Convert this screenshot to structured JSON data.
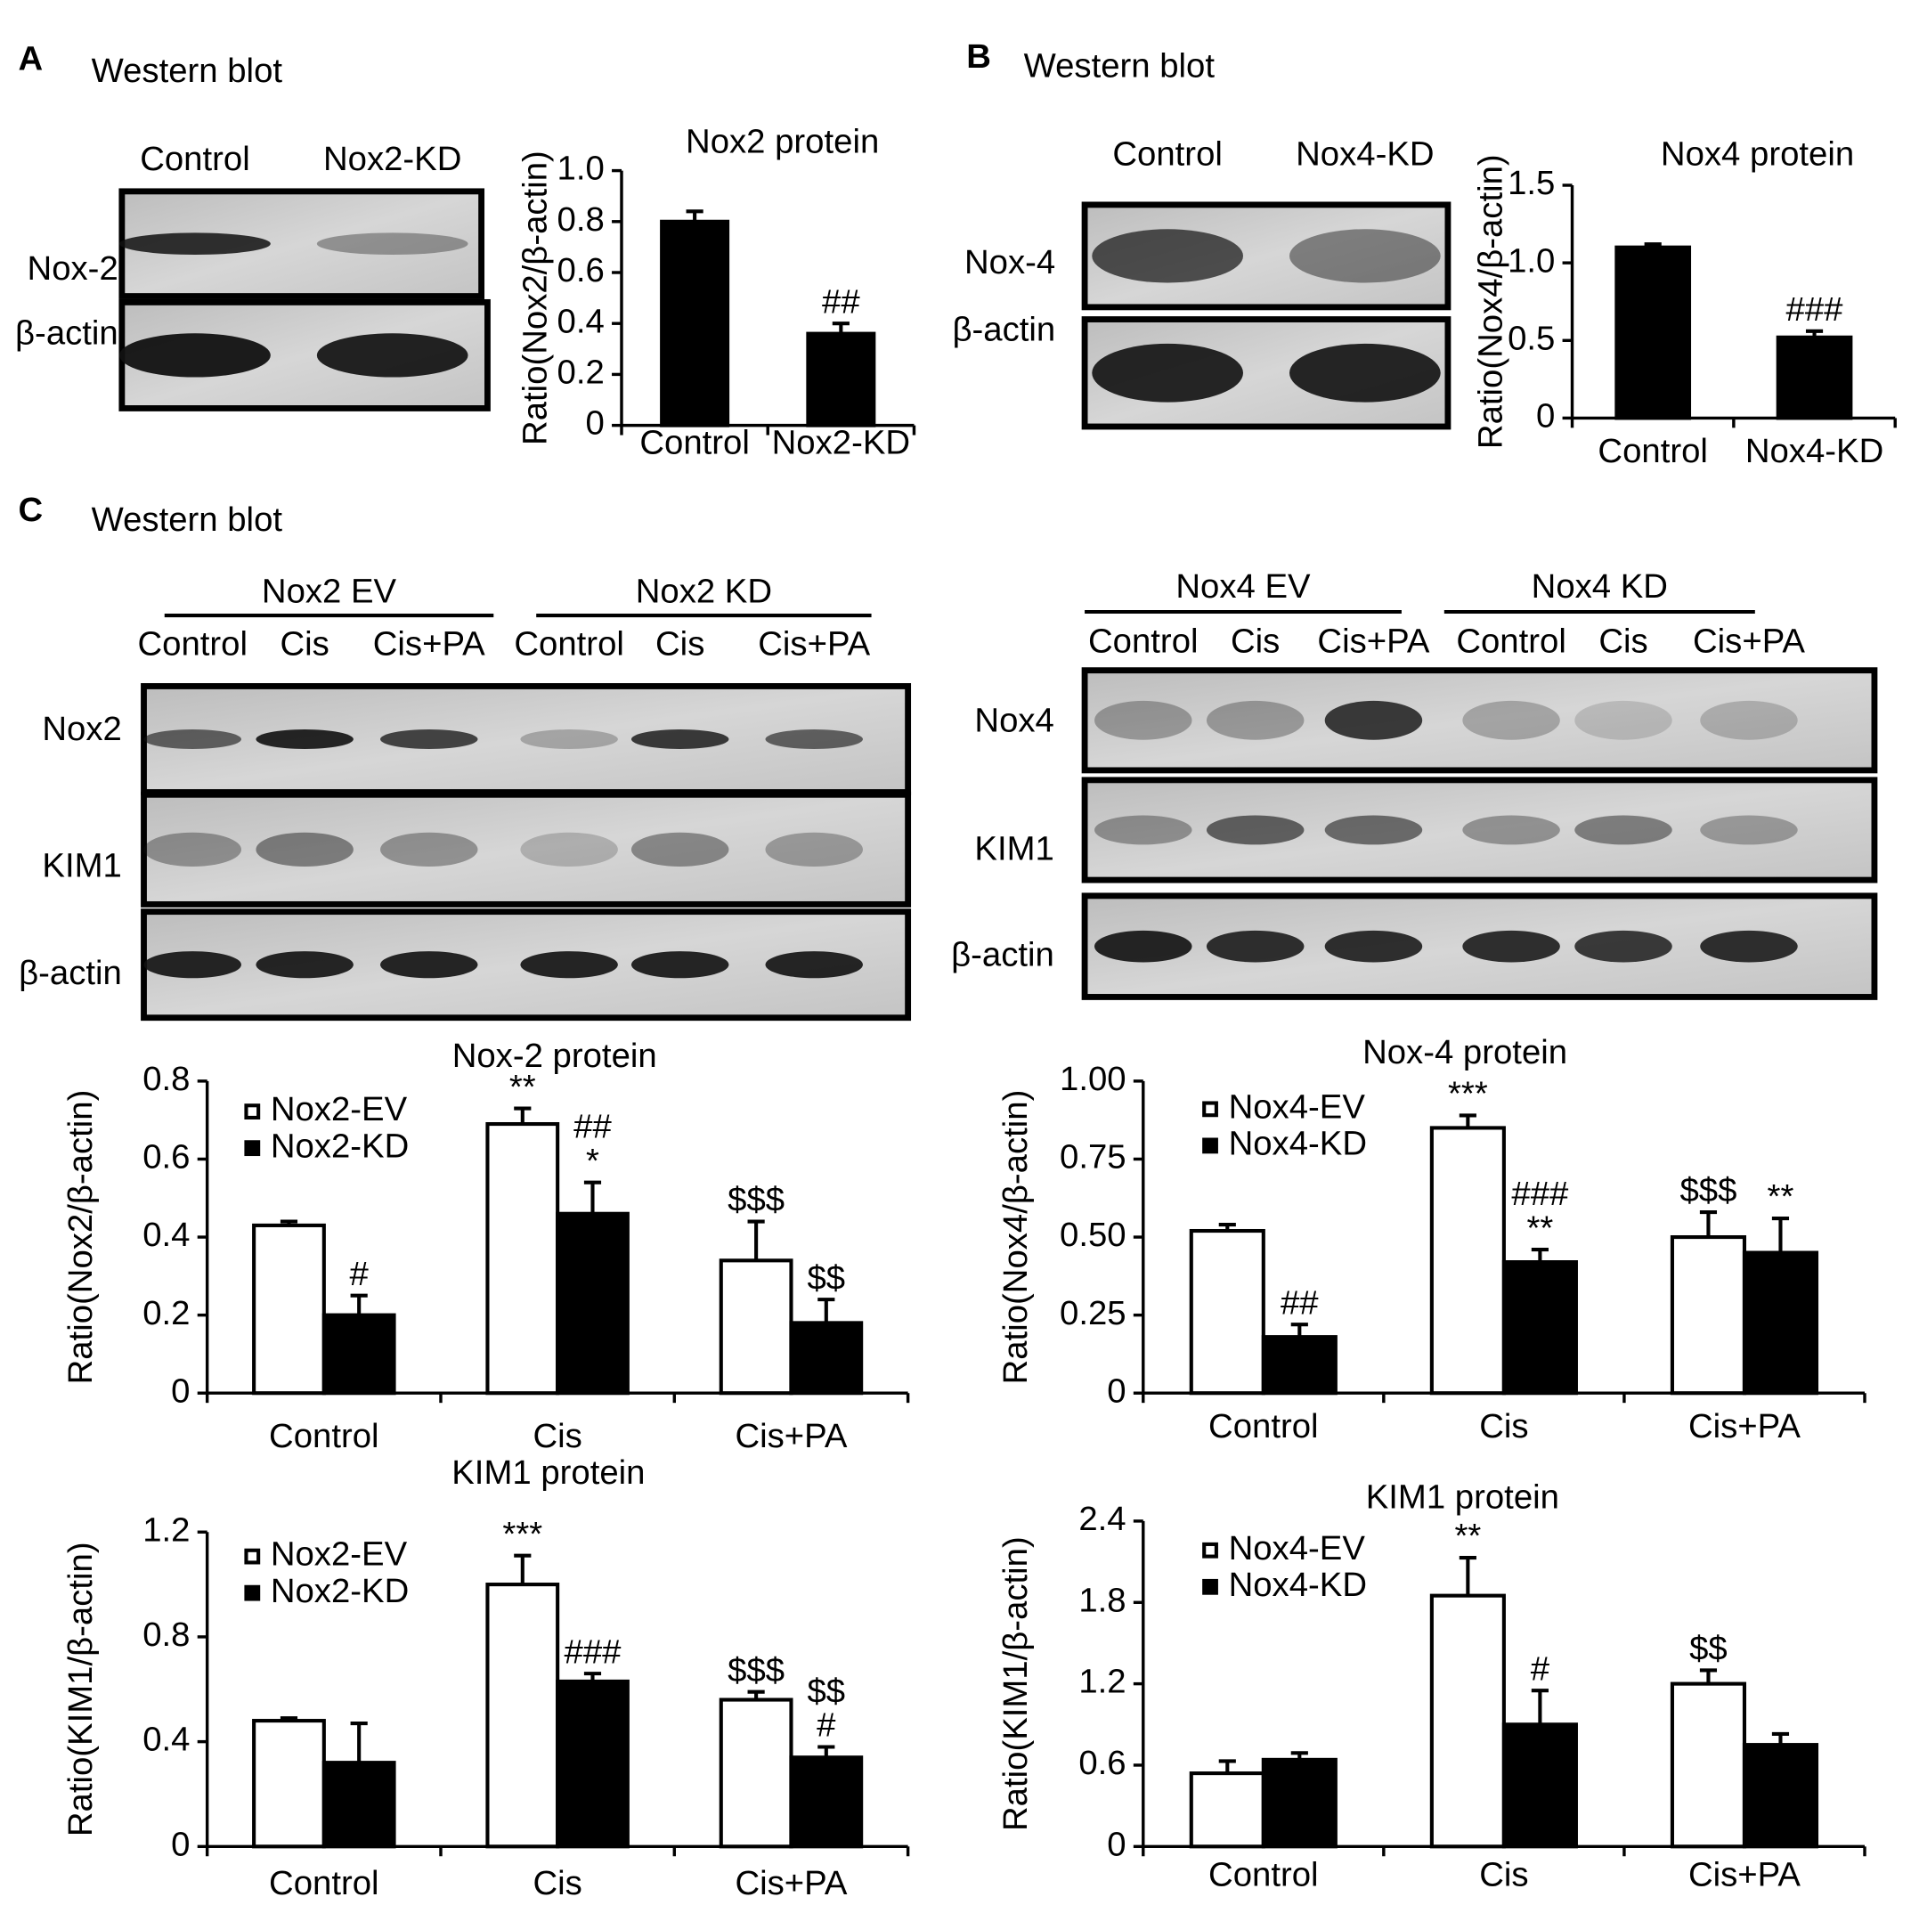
{
  "panels": [
    {
      "label": "A",
      "heading": "Western blot"
    },
    {
      "label": "B",
      "heading": "Western blot"
    },
    {
      "label": "C",
      "heading": "Western blot"
    }
  ],
  "blots": [
    {
      "lanes": [
        "Control",
        "Nox2-KD"
      ],
      "rows": [
        "Nox-2",
        "β-actin"
      ]
    },
    {
      "lanes": [
        "Control",
        "Nox4-KD"
      ],
      "rows": [
        "Nox-4",
        "β-actin"
      ]
    },
    {
      "groups": [
        "Nox2 EV",
        "Nox2 KD"
      ],
      "lanes": [
        "Control",
        "Cis",
        "Cis+PA",
        "Control",
        "Cis",
        "Cis+PA"
      ],
      "rows": [
        "Nox2",
        "KIM1",
        "β-actin"
      ]
    },
    {
      "groups": [
        "Nox4 EV",
        "Nox4 KD"
      ],
      "lanes": [
        "Control",
        "Cis",
        "Cis+PA",
        "Control",
        "Cis",
        "Cis+PA"
      ],
      "rows": [
        "Nox4",
        "KIM1",
        "β-actin"
      ]
    }
  ],
  "chart_data": [
    {
      "type": "bar",
      "title": "Nox2 protein",
      "y_label": "Ratio(Nox2/β-actin)",
      "categories": [
        "Control",
        "Nox2-KD"
      ],
      "values": [
        0.8,
        0.36
      ],
      "errors": [
        0.04,
        0.04
      ],
      "color": "#000000",
      "annotations": [
        null,
        [
          "##"
        ]
      ],
      "ylim": [
        0,
        1
      ],
      "yticks": [
        0,
        0.2,
        0.4,
        0.6,
        0.8,
        {
          "value": 1,
          "label": "1.0"
        }
      ]
    },
    {
      "type": "bar",
      "title": "Nox4 protein",
      "y_label": "Ratio(Nox4/β-actin)",
      "categories": [
        "Control",
        "Nox4-KD"
      ],
      "values": [
        1.1,
        0.52
      ],
      "errors": [
        0.02,
        0.04
      ],
      "color": "#000000",
      "annotations": [
        null,
        [
          "###"
        ]
      ],
      "ylim": [
        0,
        1.5
      ],
      "yticks": [
        0,
        0.5,
        {
          "value": 1,
          "label": "1.0"
        },
        1.5
      ]
    },
    {
      "type": "bar",
      "title": "Nox-2 protein",
      "y_label": "Ratio(Nox2/β-actin)",
      "categories": [
        "Control",
        "Cis",
        "Cis+PA"
      ],
      "legend": "upper-left",
      "series": [
        {
          "name": "Nox2-EV",
          "color": "#ffffff",
          "values": [
            0.43,
            0.69,
            0.34
          ],
          "errors": [
            0.01,
            0.04,
            0.1
          ],
          "annotations": [
            null,
            [
              "**"
            ],
            [
              "$$$"
            ]
          ]
        },
        {
          "name": "Nox2-KD",
          "color": "#000000",
          "values": [
            0.2,
            0.46,
            0.18
          ],
          "errors": [
            0.05,
            0.08,
            0.06
          ],
          "annotations": [
            [
              "#"
            ],
            [
              "##",
              "*"
            ],
            [
              "$$"
            ]
          ]
        }
      ],
      "ylim": [
        0,
        0.8
      ],
      "yticks": [
        0,
        0.2,
        0.4,
        0.6,
        0.8
      ]
    },
    {
      "type": "bar",
      "title": "Nox-4 protein",
      "y_label": "Ratio(Nox4/β-actin)",
      "categories": [
        "Control",
        "Cis",
        "Cis+PA"
      ],
      "legend": "upper-left",
      "series": [
        {
          "name": "Nox4-EV",
          "color": "#ffffff",
          "values": [
            0.52,
            0.85,
            0.5
          ],
          "errors": [
            0.02,
            0.04,
            0.08
          ],
          "annotations": [
            null,
            [
              "***"
            ],
            [
              "$$$"
            ]
          ]
        },
        {
          "name": "Nox4-KD",
          "color": "#000000",
          "values": [
            0.18,
            0.42,
            0.45
          ],
          "errors": [
            0.04,
            0.04,
            0.11
          ],
          "annotations": [
            [
              "##"
            ],
            [
              "###",
              "**"
            ],
            [
              "**"
            ]
          ]
        }
      ],
      "ylim": [
        0,
        1
      ],
      "yticks": [
        0,
        {
          "value": 0.25,
          "label": "0.25"
        },
        {
          "value": 0.5,
          "label": "0.50"
        },
        {
          "value": 0.75,
          "label": "0.75"
        },
        {
          "value": 1,
          "label": "1.00"
        }
      ]
    },
    {
      "type": "bar",
      "title": "KIM1 protein",
      "y_label": "Ratio(KIM1/β-actin)",
      "categories": [
        "Control",
        "Cis",
        "Cis+PA"
      ],
      "legend": "upper-left",
      "series": [
        {
          "name": "Nox2-EV",
          "color": "#ffffff",
          "values": [
            0.48,
            1.0,
            0.56
          ],
          "errors": [
            0.01,
            0.11,
            0.03
          ],
          "annotations": [
            null,
            [
              "***"
            ],
            [
              "$$$"
            ]
          ]
        },
        {
          "name": "Nox2-KD",
          "color": "#000000",
          "values": [
            0.32,
            0.63,
            0.34
          ],
          "errors": [
            0.15,
            0.03,
            0.04
          ],
          "annotations": [
            null,
            [
              "###"
            ],
            [
              "$$",
              "#"
            ]
          ]
        }
      ],
      "ylim": [
        0,
        1.2
      ],
      "yticks": [
        0,
        0.4,
        0.8,
        1.2
      ]
    },
    {
      "type": "bar",
      "title": "KIM1 protein",
      "y_label": "Ratio(KIM1/β-actin)",
      "categories": [
        "Control",
        "Cis",
        "Cis+PA"
      ],
      "legend": "upper-left",
      "series": [
        {
          "name": "Nox4-EV",
          "color": "#ffffff",
          "values": [
            0.54,
            1.85,
            1.2
          ],
          "errors": [
            0.09,
            0.28,
            0.1
          ],
          "annotations": [
            null,
            [
              "**"
            ],
            [
              "$$"
            ]
          ]
        },
        {
          "name": "Nox4-KD",
          "color": "#000000",
          "values": [
            0.64,
            0.9,
            0.75
          ],
          "errors": [
            0.05,
            0.25,
            0.08
          ],
          "annotations": [
            null,
            [
              "#"
            ],
            null
          ]
        }
      ],
      "ylim": [
        0,
        2.4
      ],
      "yticks": [
        0,
        0.6,
        1.2,
        1.8,
        2.4
      ]
    }
  ]
}
